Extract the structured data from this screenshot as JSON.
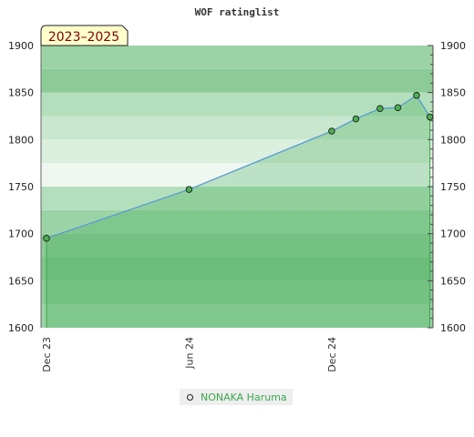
{
  "chart_data": {
    "type": "area",
    "title": "WOF ratinglist",
    "badge": "2023–2025",
    "xlabel": "",
    "ylabel": "",
    "ylim": [
      1600,
      1900
    ],
    "yticks": [
      1600,
      1650,
      1700,
      1750,
      1800,
      1850,
      1900
    ],
    "yticks_right": [
      1600,
      1650,
      1700,
      1750,
      1800,
      1850,
      1900
    ],
    "xlim": [
      "2023-11-24",
      "2025-04-10"
    ],
    "xticks": [
      {
        "label": "Dec 23",
        "date": "2023-12-01"
      },
      {
        "label": "Jun 24",
        "date": "2024-06-01"
      },
      {
        "label": "Dec 24",
        "date": "2024-12-01"
      }
    ],
    "grid": true,
    "legend_position": "bottom-center",
    "series": [
      {
        "name": "NONAKA Haruma",
        "color": "#3aa84e",
        "line_color": "#5b9bd5",
        "points": [
          {
            "x": "2023-12-01",
            "y": 1695
          },
          {
            "x": "2024-06-01",
            "y": 1747
          },
          {
            "x": "2024-12-01",
            "y": 1809
          },
          {
            "x": "2025-01-01",
            "y": 1822
          },
          {
            "x": "2025-02-01",
            "y": 1833
          },
          {
            "x": "2025-02-24",
            "y": 1834
          },
          {
            "x": "2025-03-20",
            "y": 1847
          },
          {
            "x": "2025-04-06",
            "y": 1824
          }
        ]
      }
    ],
    "band_colors": [
      "#9bd3a6",
      "#8ccb98",
      "#80c58d",
      "#8ccb98",
      "#9bd3a6",
      "#b3dfbc",
      "#f0f7f1",
      "#dbefde",
      "#c9e7ce",
      "#b3dfbc",
      "#8ccb98",
      "#9bd3a6"
    ]
  },
  "legend": {
    "label": "NONAKA Haruma"
  }
}
